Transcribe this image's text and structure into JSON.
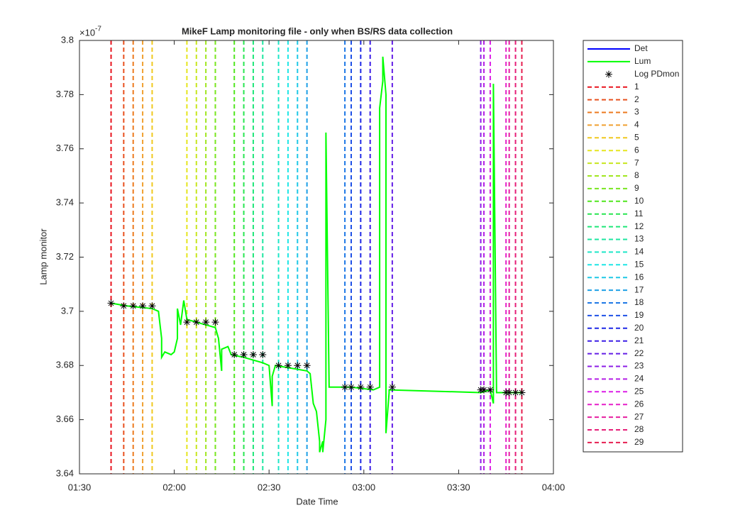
{
  "chart_data": {
    "type": "line",
    "title": "MikeF Lamp monitoring file - only when BS/RS data collection",
    "xlabel": "Date Time",
    "ylabel": "Lamp monitor",
    "y_scale_base": "×10",
    "y_scale_exponent": "-7",
    "xlim": [
      "01:30",
      "04:00"
    ],
    "xticks": [
      "01:30",
      "02:00",
      "02:30",
      "03:00",
      "03:30",
      "04:00"
    ],
    "ylim": [
      3.64,
      3.8
    ],
    "yticks": [
      3.64,
      3.66,
      3.68,
      3.7,
      3.72,
      3.74,
      3.76,
      3.78,
      3.8
    ],
    "grid": false,
    "series": [
      {
        "name": "Det",
        "color": "#0000ff",
        "style": "line",
        "x": [],
        "values": []
      },
      {
        "name": "Lum",
        "color": "#00ff00",
        "style": "line",
        "x": [
          "01:40",
          "01:45",
          "01:53",
          "01:55",
          "01:56",
          "01:56",
          "01:57",
          "01:59",
          "02:00",
          "02:01",
          "02:01",
          "02:02",
          "02:03",
          "02:04",
          "02:04",
          "02:13",
          "02:14",
          "02:15",
          "02:15",
          "02:17",
          "02:18",
          "02:22",
          "02:28",
          "02:30",
          "02:31",
          "02:31",
          "02:32",
          "02:42",
          "02:43",
          "02:44",
          "02:45",
          "02:46",
          "02:46",
          "02:47",
          "02:47",
          "02:48",
          "02:48",
          "02:49",
          "02:49",
          "02:56",
          "03:03",
          "03:05",
          "03:05",
          "03:06",
          "03:06",
          "03:07",
          "03:07",
          "03:08",
          "03:08",
          "03:37",
          "03:40",
          "03:41",
          "03:41",
          "03:42",
          "03:50"
        ],
        "values": [
          3.703,
          3.702,
          3.701,
          3.7,
          3.69,
          3.683,
          3.685,
          3.684,
          3.685,
          3.69,
          3.701,
          3.695,
          3.704,
          3.697,
          3.697,
          3.694,
          3.69,
          3.678,
          3.686,
          3.687,
          3.684,
          3.683,
          3.681,
          3.68,
          3.665,
          3.676,
          3.68,
          3.678,
          3.677,
          3.666,
          3.663,
          3.652,
          3.648,
          3.652,
          3.648,
          3.66,
          3.766,
          3.673,
          3.672,
          3.672,
          3.671,
          3.672,
          3.775,
          3.785,
          3.794,
          3.78,
          3.655,
          3.67,
          3.671,
          3.67,
          3.671,
          3.666,
          3.784,
          3.67,
          3.67
        ]
      },
      {
        "name": "Log PDmon",
        "color": "#000000",
        "style": "marker",
        "x": [
          "01:40",
          "01:44",
          "01:47",
          "01:50",
          "01:53",
          "02:04",
          "02:07",
          "02:10",
          "02:13",
          "02:19",
          "02:22",
          "02:25",
          "02:28",
          "02:33",
          "02:36",
          "02:39",
          "02:42",
          "02:54",
          "02:56",
          "02:59",
          "03:02",
          "03:09",
          "03:37",
          "03:38",
          "03:40",
          "03:45",
          "03:46",
          "03:48",
          "03:50"
        ],
        "values": [
          3.703,
          3.702,
          3.702,
          3.702,
          3.702,
          3.696,
          3.696,
          3.696,
          3.696,
          3.684,
          3.684,
          3.684,
          3.684,
          3.68,
          3.68,
          3.68,
          3.68,
          3.672,
          3.672,
          3.672,
          3.672,
          3.672,
          3.671,
          3.671,
          3.671,
          3.67,
          3.67,
          3.67,
          3.67
        ]
      }
    ],
    "vertical_lines": [
      {
        "name": "1",
        "color": "#e8141e",
        "x": "01:40"
      },
      {
        "name": "2",
        "color": "#e8501e",
        "x": "01:44"
      },
      {
        "name": "3",
        "color": "#ec7a1e",
        "x": "01:47"
      },
      {
        "name": "4",
        "color": "#f0a030",
        "x": "01:50"
      },
      {
        "name": "5",
        "color": "#f0c81e",
        "x": "01:53"
      },
      {
        "name": "6",
        "color": "#e6e61e",
        "x": "02:04"
      },
      {
        "name": "7",
        "color": "#c8e61e",
        "x": "02:07"
      },
      {
        "name": "8",
        "color": "#a0e61e",
        "x": "02:10"
      },
      {
        "name": "9",
        "color": "#78e61e",
        "x": "02:13"
      },
      {
        "name": "10",
        "color": "#50e61e",
        "x": "02:19"
      },
      {
        "name": "11",
        "color": "#28e650",
        "x": "02:22"
      },
      {
        "name": "12",
        "color": "#1ee678",
        "x": "02:25"
      },
      {
        "name": "13",
        "color": "#1ee6a0",
        "x": "02:28"
      },
      {
        "name": "14",
        "color": "#1ee6c8",
        "x": "02:33"
      },
      {
        "name": "15",
        "color": "#1ee6e6",
        "x": "02:36"
      },
      {
        "name": "16",
        "color": "#1ec8e6",
        "x": "02:39"
      },
      {
        "name": "17",
        "color": "#1ea0e6",
        "x": "02:42"
      },
      {
        "name": "18",
        "color": "#1e78e6",
        "x": "02:54"
      },
      {
        "name": "19",
        "color": "#1e50e6",
        "x": "02:56"
      },
      {
        "name": "20",
        "color": "#1e28e6",
        "x": "02:59"
      },
      {
        "name": "21",
        "color": "#3c1ee6",
        "x": "03:02"
      },
      {
        "name": "22",
        "color": "#641ee6",
        "x": "03:09"
      },
      {
        "name": "23",
        "color": "#8c1ee6",
        "x": "03:37"
      },
      {
        "name": "24",
        "color": "#b41ee6",
        "x": "03:38"
      },
      {
        "name": "25",
        "color": "#dc1ee6",
        "x": "03:40"
      },
      {
        "name": "26",
        "color": "#e61ec8",
        "x": "03:45"
      },
      {
        "name": "27",
        "color": "#e61ea0",
        "x": "03:46"
      },
      {
        "name": "28",
        "color": "#e61e78",
        "x": "03:48"
      },
      {
        "name": "29",
        "color": "#e61e50",
        "x": "03:50"
      }
    ]
  }
}
